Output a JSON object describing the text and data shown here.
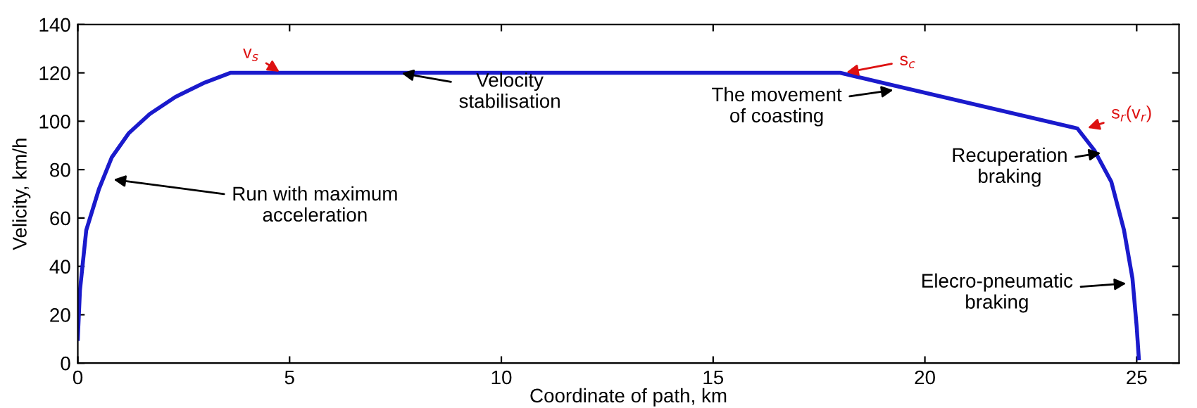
{
  "chart_data": {
    "type": "line",
    "xlabel": "Coordinate of path, km",
    "ylabel": "Velicity, km/h",
    "x": [
      0,
      0.05,
      0.2,
      0.5,
      0.8,
      1.2,
      1.7,
      2.3,
      3.0,
      3.6,
      18.0,
      23.6,
      24.0,
      24.4,
      24.7,
      24.9,
      25.0,
      25.05
    ],
    "series": [
      {
        "color": "#1a1acc",
        "values": [
          10,
          30,
          55,
          72,
          85,
          95,
          103,
          110,
          116,
          120,
          120,
          97,
          88,
          75,
          55,
          35,
          15,
          2
        ]
      }
    ],
    "xlim": [
      0,
      26
    ],
    "ylim": [
      0,
      140
    ],
    "xticks": [
      0,
      5,
      10,
      15,
      20,
      25
    ],
    "yticks": [
      0,
      20,
      40,
      60,
      80,
      100,
      120,
      140
    ],
    "grid": false,
    "marker": "none",
    "line_style": "solid",
    "annotations": [
      {
        "text": "v$_{s}$",
        "x": 4.8,
        "y": 120
      },
      {
        "text": "s$_{c}$",
        "x": 18.1,
        "y": 120
      },
      {
        "text": "s$_{r}$(v$_{r}$)",
        "x": 23.8,
        "y": 97
      },
      {
        "text": "Run with maximum\nacceleration",
        "x": 0.8,
        "y": 76
      },
      {
        "text": "Velocity\nstabilisation",
        "x": 7.6,
        "y": 120
      },
      {
        "text": "The movement\nof coasting",
        "x": 19.3,
        "y": 113
      },
      {
        "text": "Recuperation\nbraking",
        "x": 24.2,
        "y": 87
      },
      {
        "text": "Elecro-pneumatic\nbraking",
        "x": 24.8,
        "y": 33
      }
    ]
  }
}
